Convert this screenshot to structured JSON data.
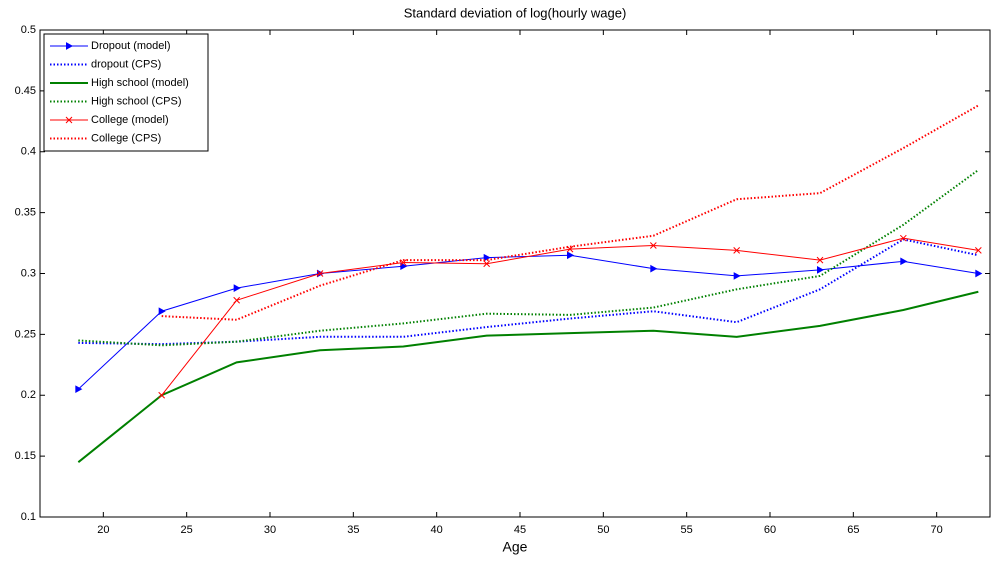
{
  "chart_data": {
    "type": "line",
    "title": "Standard deviation of log(hourly wage)",
    "x_label": "Age",
    "x": [
      18.5,
      23.5,
      28,
      33,
      38,
      43,
      48,
      53,
      58,
      63,
      68,
      72.5
    ],
    "xlim": [
      16.2,
      73.2
    ],
    "xticks": [
      20,
      25,
      30,
      35,
      40,
      45,
      50,
      55,
      60,
      65,
      70
    ],
    "ylim": [
      0.1,
      0.5
    ],
    "yticks": [
      0.1,
      0.15,
      0.2,
      0.25,
      0.3,
      0.35,
      0.4,
      0.45,
      0.5
    ],
    "legend_position": "upper-left",
    "series": [
      {
        "name": "Dropout (model)",
        "color": "#0000ff",
        "line_style": "solid",
        "marker": "triangle",
        "values": [
          0.205,
          0.269,
          0.288,
          0.3,
          0.306,
          0.313,
          0.315,
          0.304,
          0.298,
          0.303,
          0.31,
          0.3
        ]
      },
      {
        "name": "dropout (CPS)",
        "color": "#0000ff",
        "line_style": "dotted",
        "values": [
          0.243,
          0.242,
          0.244,
          0.248,
          0.248,
          0.256,
          0.263,
          0.269,
          0.26,
          0.287,
          0.328,
          0.315
        ]
      },
      {
        "name": "High school (model)",
        "color": "#008000",
        "line_style": "solid",
        "values": [
          0.145,
          0.2,
          0.227,
          0.237,
          0.24,
          0.249,
          0.251,
          0.253,
          0.248,
          0.257,
          0.27,
          0.285
        ]
      },
      {
        "name": "High school (CPS)",
        "color": "#008000",
        "line_style": "dotted",
        "values": [
          0.245,
          0.241,
          0.244,
          0.253,
          0.259,
          0.267,
          0.266,
          0.272,
          0.287,
          0.298,
          0.34,
          0.385
        ]
      },
      {
        "name": "College (model)",
        "color": "#ff0000",
        "line_style": "solid",
        "marker": "x",
        "values": [
          null,
          0.2,
          0.278,
          0.3,
          0.309,
          0.308,
          0.32,
          0.323,
          0.319,
          0.311,
          0.329,
          0.319
        ]
      },
      {
        "name": "College (CPS)",
        "color": "#ff0000",
        "line_style": "dotted",
        "values": [
          null,
          0.265,
          0.262,
          0.29,
          0.311,
          0.311,
          0.322,
          0.331,
          0.361,
          0.366,
          0.403,
          0.438
        ]
      }
    ]
  }
}
